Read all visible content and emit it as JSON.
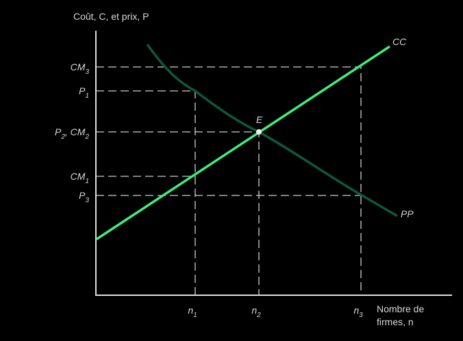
{
  "y_axis_title": "Coût, C, et prix, P",
  "x_axis_title": [
    "Nombre de",
    "firmes, n"
  ],
  "y_labels": [
    [
      {
        "base": "CM",
        "sub": "3"
      }
    ],
    [
      {
        "base": "P",
        "sub": "1"
      }
    ],
    [
      {
        "base": "P",
        "sub": "2"
      },
      {
        "base": ", CM",
        "sub": "2"
      }
    ],
    [
      {
        "base": "CM",
        "sub": "1"
      }
    ],
    [
      {
        "base": "P",
        "sub": "3"
      }
    ]
  ],
  "x_labels": [
    {
      "base": "n",
      "sub": "1"
    },
    {
      "base": "n",
      "sub": "2"
    },
    {
      "base": "n",
      "sub": "3"
    }
  ],
  "curves": {
    "cc": "CC",
    "pp": "PP"
  },
  "point": "E"
}
